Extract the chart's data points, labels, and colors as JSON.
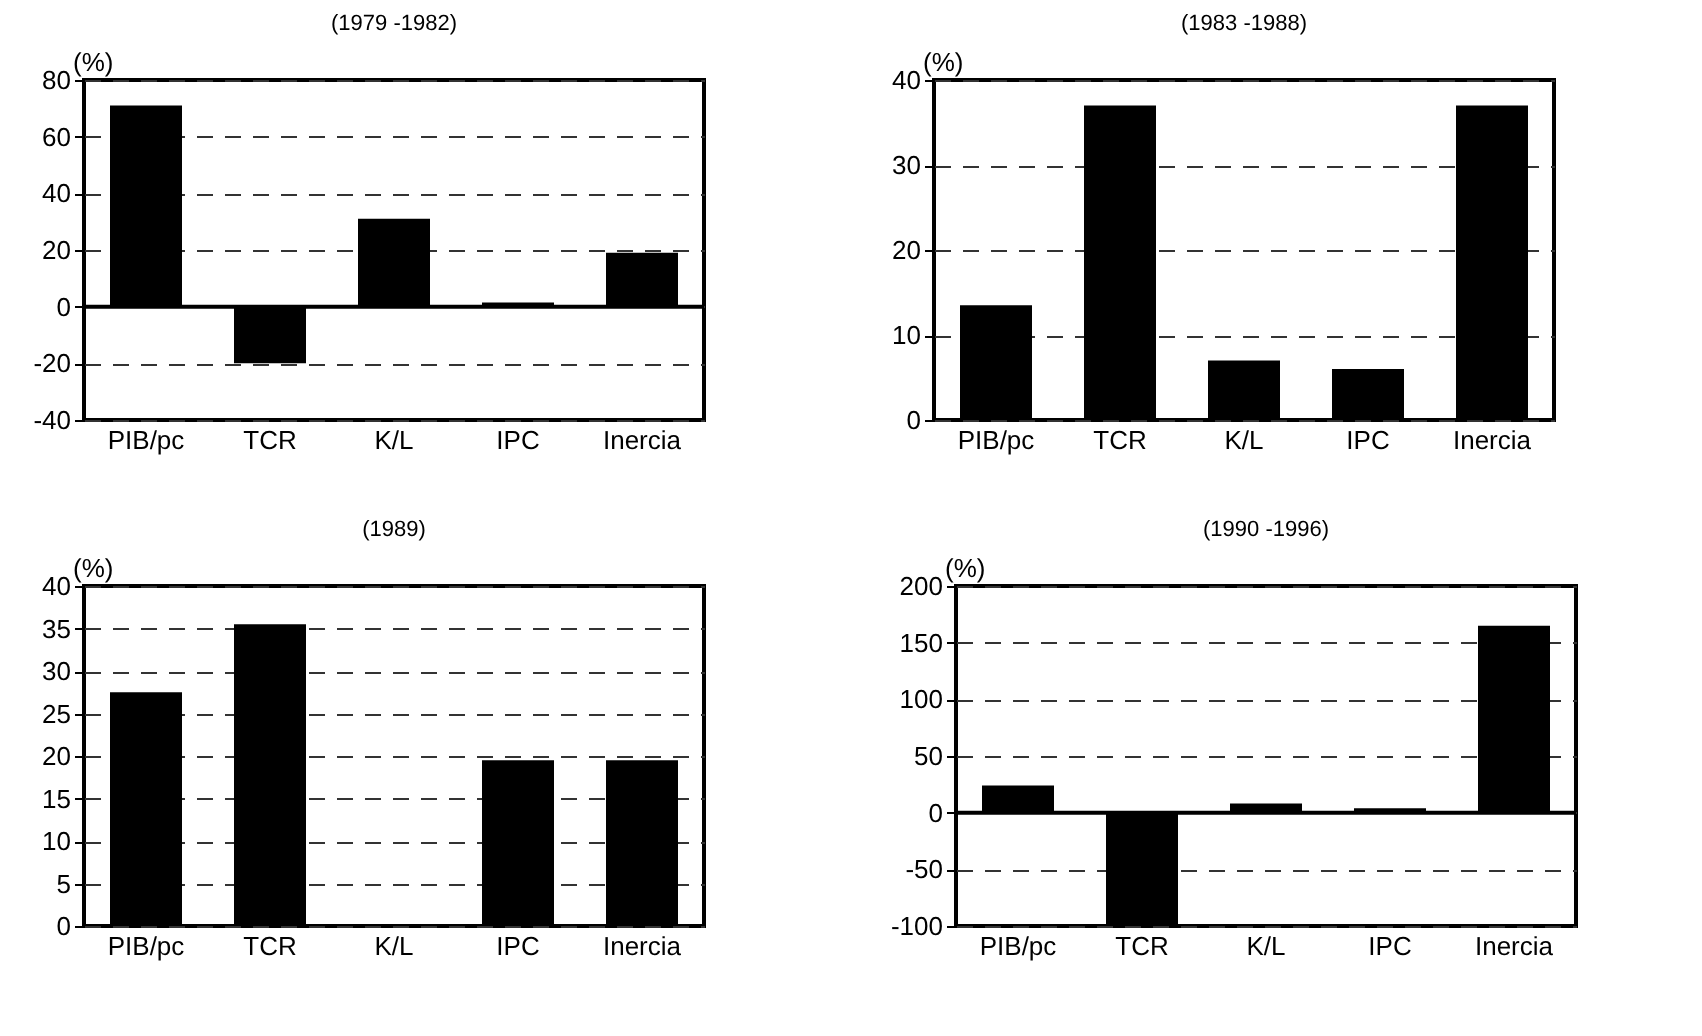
{
  "chart_data": [
    {
      "type": "bar",
      "title": "(1979 -1982)",
      "ylabel": "(%)",
      "categories": [
        "PIB/pc",
        "TCR",
        "K/L",
        "IPC",
        "Inercia"
      ],
      "values": [
        71,
        -20,
        31,
        1.5,
        19
      ],
      "color": "#000000",
      "ylim": [
        -40,
        80
      ],
      "yticks": [
        -40,
        -20,
        0,
        20,
        40,
        60,
        80
      ],
      "grid": "y",
      "ref_lines": [
        {
          "axis": "y",
          "value": 0
        }
      ]
    },
    {
      "type": "bar",
      "title": "(1983 -1988)",
      "ylabel": "(%)",
      "categories": [
        "PIB/pc",
        "TCR",
        "K/L",
        "IPC",
        "Inercia"
      ],
      "values": [
        13.5,
        37,
        7,
        6,
        37
      ],
      "color": "#000000",
      "ylim": [
        0,
        40
      ],
      "yticks": [
        0,
        10,
        20,
        30,
        40
      ],
      "grid": "y"
    },
    {
      "type": "bar",
      "title": "(1989)",
      "ylabel": "(%)",
      "categories": [
        "PIB/pc",
        "TCR",
        "K/L",
        "IPC",
        "Inercia"
      ],
      "values": [
        27.5,
        35.5,
        0,
        19.5,
        19.5
      ],
      "color": "#000000",
      "ylim": [
        0,
        40
      ],
      "yticks": [
        0,
        5,
        10,
        15,
        20,
        25,
        30,
        35,
        40
      ],
      "grid": "y"
    },
    {
      "type": "bar",
      "title": "(1990 -1996)",
      "ylabel": "(%)",
      "categories": [
        "PIB/pc",
        "TCR",
        "K/L",
        "IPC",
        "Inercia"
      ],
      "values": [
        24,
        -100,
        8,
        4,
        165
      ],
      "color": "#000000",
      "ylim": [
        -100,
        200
      ],
      "yticks": [
        -100,
        -50,
        0,
        50,
        100,
        150,
        200
      ],
      "grid": "y",
      "ref_lines": [
        {
          "axis": "y",
          "value": 0
        }
      ]
    }
  ]
}
